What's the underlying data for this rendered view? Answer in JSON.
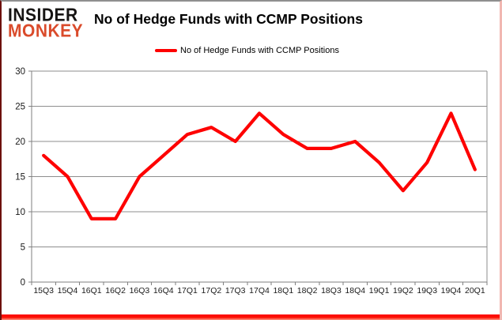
{
  "brand": {
    "line1": "INSIDER",
    "line2": "MONKEY"
  },
  "header": {
    "title": "No of Hedge Funds with CCMP Positions"
  },
  "legend": {
    "label": "No of Hedge Funds with CCMP Positions"
  },
  "colors": {
    "series_line": "#fe0000",
    "grid": "#8e8e8e",
    "axis": "#7f7f7f",
    "tick_label": "#1a1a1a",
    "brand_primary": "#161413",
    "brand_accent": "#da4b2b",
    "frame_bottom": "#ff0300"
  },
  "chart_data": {
    "type": "line",
    "title": "No of Hedge Funds with CCMP Positions",
    "categories": [
      "15Q3",
      "15Q4",
      "16Q1",
      "16Q2",
      "16Q3",
      "16Q4",
      "17Q1",
      "17Q2",
      "17Q3",
      "17Q4",
      "18Q1",
      "18Q2",
      "18Q3",
      "18Q4",
      "19Q1",
      "19Q2",
      "19Q3",
      "19Q4",
      "20Q1"
    ],
    "series": [
      {
        "name": "No of Hedge Funds with CCMP Positions",
        "values": [
          18,
          15,
          9,
          9,
          15,
          18,
          21,
          22,
          20,
          24,
          21,
          19,
          19,
          20,
          17,
          13,
          17,
          24,
          16
        ]
      }
    ],
    "xlabel": "",
    "ylabel": "",
    "ylim": [
      0,
      30
    ],
    "yticks": [
      0,
      5,
      10,
      15,
      20,
      25,
      30
    ],
    "grid": true,
    "legend_position": "top"
  }
}
